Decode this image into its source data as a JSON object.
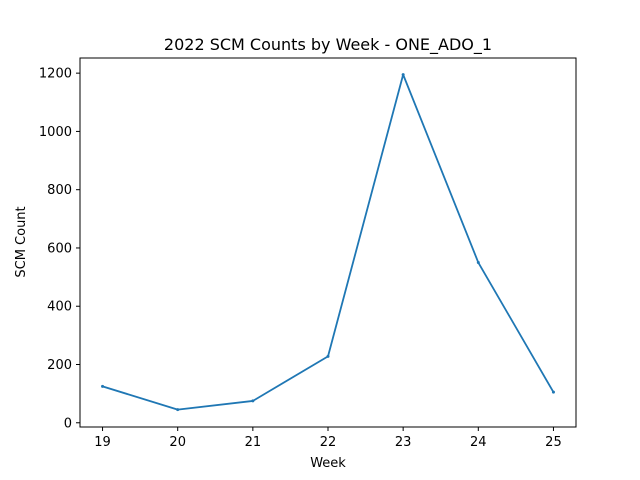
{
  "chart_data": {
    "type": "line",
    "title": "2022 SCM Counts by Week - ONE_ADO_1",
    "xlabel": "Week",
    "ylabel": "SCM Count",
    "x": [
      19,
      20,
      21,
      22,
      23,
      24,
      25
    ],
    "series": [
      {
        "values": [
          125,
          45,
          75,
          228,
          1195,
          550,
          105
        ]
      }
    ],
    "xlim": [
      18.7,
      25.3
    ],
    "ylim": [
      -14.5,
      1252
    ],
    "xticks": [
      "19",
      "20",
      "21",
      "22",
      "23",
      "24",
      "25"
    ],
    "yticks": [
      "0",
      "200",
      "400",
      "600",
      "800",
      "1000",
      "1200"
    ],
    "grid": false,
    "legend": "none",
    "colors": {
      "line": "#1f77b4",
      "axes": "#000000",
      "background": "#ffffff"
    }
  }
}
